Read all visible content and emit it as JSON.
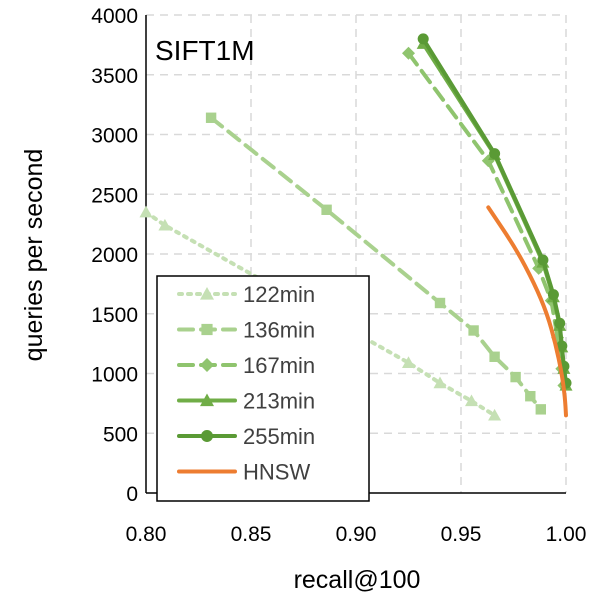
{
  "chart_data": {
    "type": "line",
    "title": "SIFT1M",
    "xlabel": "recall@100",
    "ylabel": "queries per second",
    "xlim": [
      0.8,
      1.0
    ],
    "ylim": [
      0,
      4000
    ],
    "x_ticks": [
      "0.80",
      "0.85",
      "0.90",
      "0.95",
      "1.00"
    ],
    "y_ticks": [
      "0",
      "500",
      "1000",
      "1500",
      "2000",
      "2500",
      "3000",
      "3500",
      "4000"
    ],
    "grid": true,
    "legend_position": "bottom-left",
    "series": [
      {
        "name": "122min",
        "color": "#c5e0b4",
        "dash": "dotted",
        "marker": "triangle",
        "points": [
          [
            0.8,
            2350
          ],
          [
            0.809,
            2240
          ],
          [
            0.925,
            1090
          ],
          [
            0.94,
            920
          ],
          [
            0.955,
            770
          ],
          [
            0.966,
            650
          ]
        ]
      },
      {
        "name": "136min",
        "color": "#a9d18e",
        "dash": "dashed",
        "marker": "square",
        "points": [
          [
            0.831,
            3140
          ],
          [
            0.886,
            2370
          ],
          [
            0.94,
            1590
          ],
          [
            0.956,
            1360
          ],
          [
            0.966,
            1140
          ],
          [
            0.976,
            970
          ],
          [
            0.983,
            810
          ],
          [
            0.988,
            700
          ]
        ]
      },
      {
        "name": "167min",
        "color": "#8fc46e",
        "dash": "dashed",
        "marker": "diamond",
        "points": [
          [
            0.925,
            3680
          ],
          [
            0.963,
            2780
          ],
          [
            0.987,
            1880
          ],
          [
            0.993,
            1610
          ],
          [
            0.996,
            1300
          ],
          [
            0.998,
            1040
          ],
          [
            0.999,
            900
          ]
        ]
      },
      {
        "name": "213min",
        "color": "#70ad47",
        "dash": "solid",
        "marker": "triangle",
        "points": [
          [
            0.932,
            3760
          ],
          [
            0.966,
            2830
          ],
          [
            0.989,
            1930
          ],
          [
            0.994,
            1640
          ],
          [
            0.997,
            1400
          ],
          [
            0.998,
            1220
          ],
          [
            0.999,
            1040
          ],
          [
            1.0,
            900
          ]
        ]
      },
      {
        "name": "255min",
        "color": "#5a9a35",
        "dash": "solid",
        "marker": "circle",
        "points": [
          [
            0.932,
            3800
          ],
          [
            0.966,
            2840
          ],
          [
            0.989,
            1950
          ],
          [
            0.994,
            1660
          ],
          [
            0.997,
            1420
          ],
          [
            0.998,
            1230
          ],
          [
            0.999,
            1060
          ],
          [
            1.0,
            920
          ]
        ]
      },
      {
        "name": "HNSW",
        "color": "#ed7d31",
        "dash": "solid",
        "marker": "none",
        "points": [
          [
            0.963,
            2390
          ],
          [
            0.976,
            2050
          ],
          [
            0.985,
            1750
          ],
          [
            0.991,
            1500
          ],
          [
            0.995,
            1250
          ],
          [
            0.998,
            1000
          ],
          [
            0.9995,
            800
          ],
          [
            1.0,
            650
          ]
        ]
      }
    ]
  }
}
